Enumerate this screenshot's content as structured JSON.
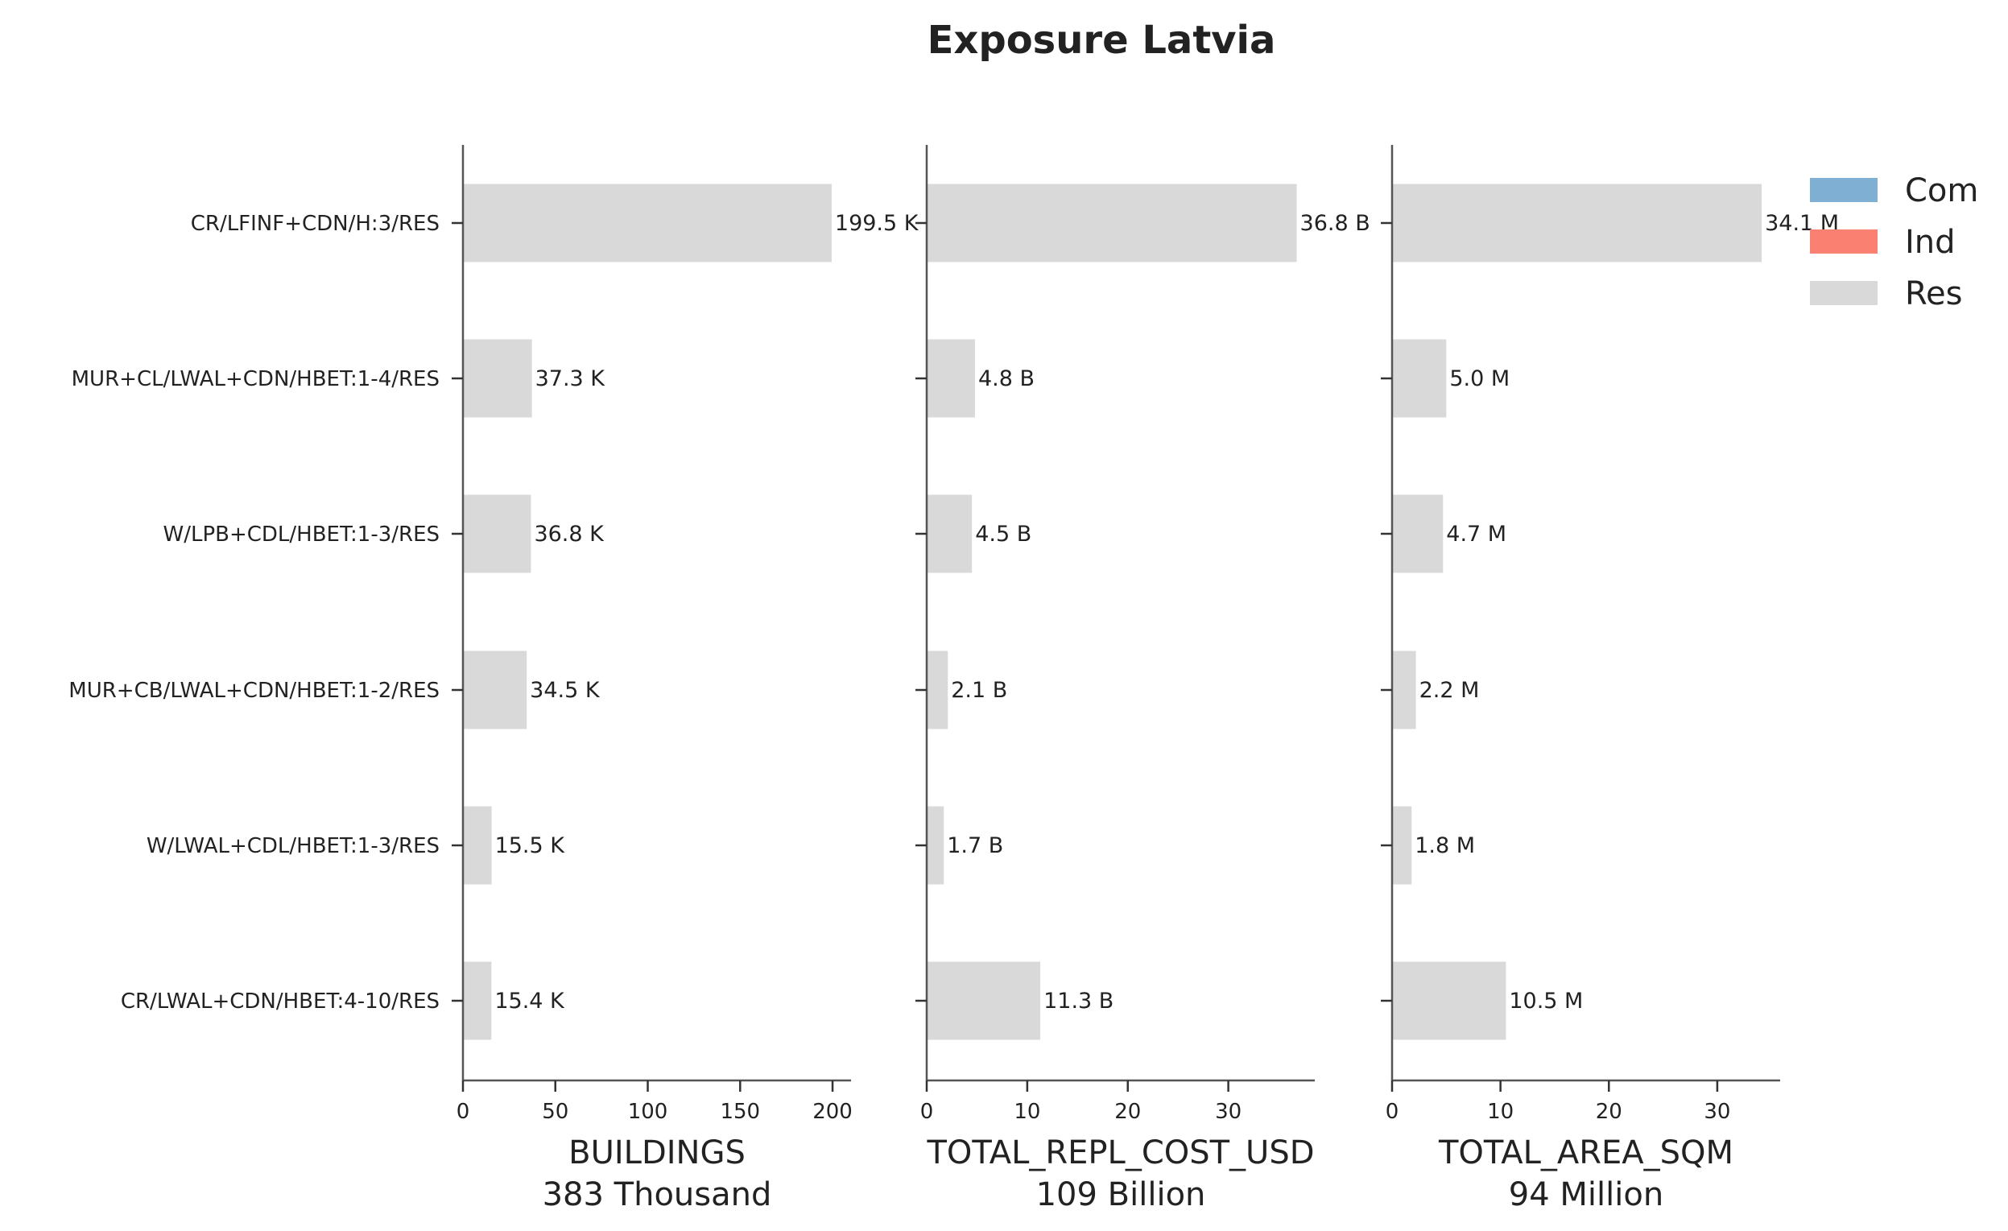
{
  "chart_data": {
    "type": "bar",
    "orientation": "horizontal",
    "title": "Exposure Latvia",
    "categories": [
      "CR/LFINF+CDN/H:3/RES",
      "MUR+CL/LWAL+CDN/HBET:1-4/RES",
      "W/LPB+CDL/HBET:1-3/RES",
      "MUR+CB/LWAL+CDN/HBET:1-2/RES",
      "W/LWAL+CDL/HBET:1-3/RES",
      "CR/LWAL+CDN/HBET:4-10/RES"
    ],
    "legend": {
      "placement": "top-right",
      "entries": [
        {
          "name": "Com",
          "color": "#7fafd3"
        },
        {
          "name": "Ind",
          "color": "#fa8072"
        },
        {
          "name": "Res",
          "color": "#d9d9d9"
        }
      ]
    },
    "panels": [
      {
        "xlabel": "BUILDINGS",
        "total": "383 Thousand",
        "xlim": [
          0,
          210
        ],
        "xticks": [
          0,
          50,
          100,
          150,
          200
        ],
        "series": [
          {
            "name": "Res",
            "values": [
              199.5,
              37.3,
              36.8,
              34.5,
              15.5,
              15.4
            ]
          }
        ],
        "value_labels": [
          "199.5 K",
          "37.3 K",
          "36.8 K",
          "34.5 K",
          "15.5 K",
          "15.4 K"
        ]
      },
      {
        "xlabel": "TOTAL_REPL_COST_USD",
        "total": "109 Billion",
        "xlim": [
          0,
          38.6
        ],
        "xticks": [
          0,
          10,
          20,
          30
        ],
        "series": [
          {
            "name": "Res",
            "values": [
              36.8,
              4.8,
              4.5,
              2.1,
              1.7,
              11.3
            ]
          }
        ],
        "value_labels": [
          "36.8 B",
          "4.8 B",
          "4.5 B",
          "2.1 B",
          "1.7 B",
          "11.3 B"
        ]
      },
      {
        "xlabel": "TOTAL_AREA_SQM",
        "total": "94 Million",
        "xlim": [
          0,
          35.8
        ],
        "xticks": [
          0,
          10,
          20,
          30
        ],
        "series": [
          {
            "name": "Res",
            "values": [
              34.1,
              5.0,
              4.7,
              2.2,
              1.8,
              10.5
            ]
          }
        ],
        "value_labels": [
          "34.1 M",
          "5.0 M",
          "4.7 M",
          "2.2 M",
          "1.8 M",
          "10.5 M"
        ]
      }
    ]
  }
}
